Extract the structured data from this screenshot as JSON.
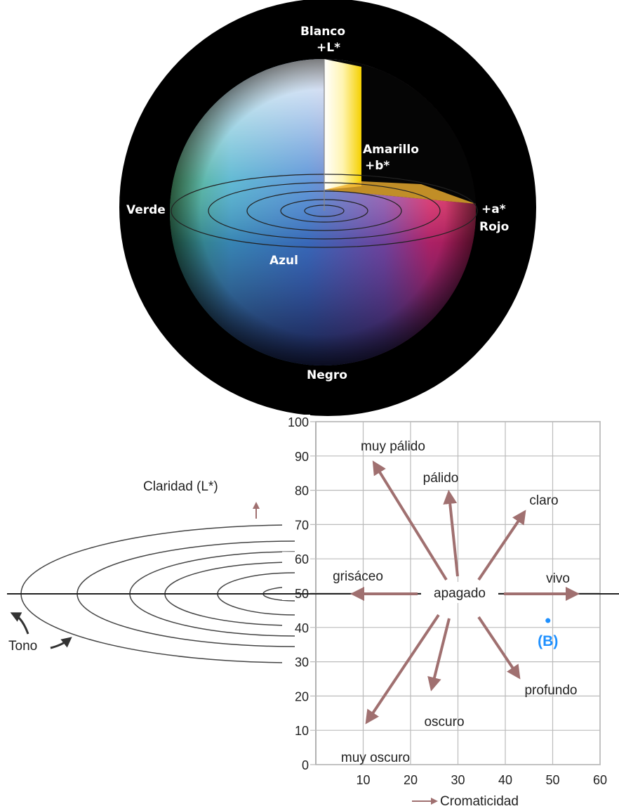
{
  "sphere": {
    "top_label": "Blanco",
    "top_axis": "+L*",
    "yellow_label": "Amarillo",
    "yellow_axis": "+b*",
    "green_label": "Verde",
    "red_axis": "+a*",
    "red_label": "Rojo",
    "blue_label": "Azul",
    "bottom_label": "Negro"
  },
  "plot": {
    "y_axis_title": "Claridad (L*)",
    "x_axis_title": "Cromaticidad",
    "hue_label": "Tono",
    "xlim": [
      0,
      60
    ],
    "ylim": [
      0,
      100
    ],
    "xticks": [
      10,
      20,
      30,
      40,
      50,
      60
    ],
    "yticks": [
      0,
      10,
      20,
      30,
      40,
      50,
      60,
      70,
      80,
      90,
      100
    ],
    "center_label": "apagado",
    "directions": [
      "muy pálido",
      "pálido",
      "claro",
      "vivo",
      "profundo",
      "oscuro",
      "muy oscuro",
      "grisáceo"
    ],
    "point": {
      "label": "(B)",
      "x": 49,
      "y": 42
    }
  }
}
